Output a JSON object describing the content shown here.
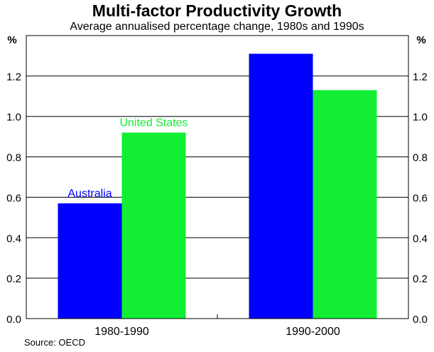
{
  "chart_data": {
    "type": "bar",
    "title": "Multi-factor Productivity Growth",
    "subtitle": "Average annualised percentage change, 1980s and 1990s",
    "y_unit_left": "%",
    "y_unit_right": "%",
    "ylim": [
      0,
      1.4
    ],
    "yticks": [
      "0.0",
      "0.2",
      "0.4",
      "0.6",
      "0.8",
      "1.0",
      "1.2"
    ],
    "categories": [
      "1980-1990",
      "1990-2000"
    ],
    "series": [
      {
        "name": "Australia",
        "color": "#0000ff",
        "values": [
          0.57,
          1.31
        ]
      },
      {
        "name": "United States",
        "color": "#11ee33",
        "values": [
          0.92,
          1.13
        ]
      }
    ],
    "grid": true,
    "source": "Source: OECD"
  }
}
